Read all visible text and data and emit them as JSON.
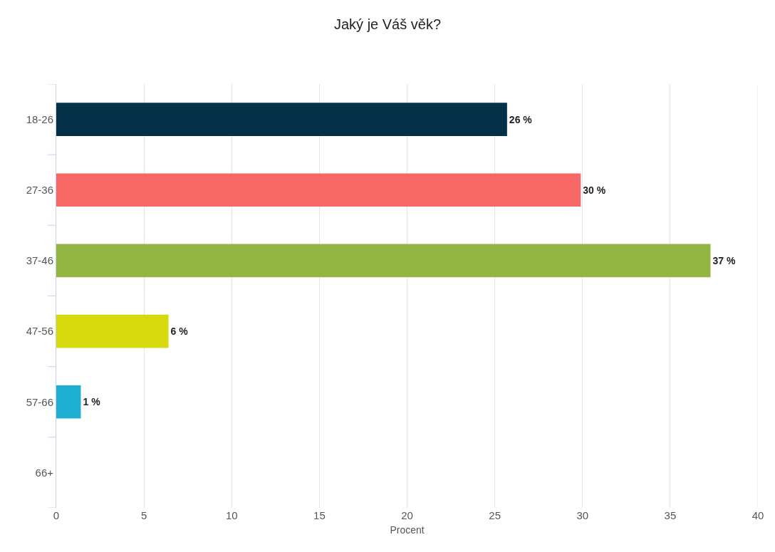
{
  "chart_data": {
    "type": "bar",
    "orientation": "horizontal",
    "title": "Jaký je Váš věk?",
    "xlabel": "Procent",
    "categories": [
      "18-26",
      "27-36",
      "37-46",
      "47-56",
      "57-66",
      "66+"
    ],
    "values": [
      25.7,
      29.9,
      37.3,
      6.4,
      1.4,
      0
    ],
    "colors": [
      "#043148",
      "#f66766",
      "#92b641",
      "#d7d80e",
      "#1eaed0",
      null
    ],
    "value_labels": [
      "26 %",
      "30 %",
      "37 %",
      "6 %",
      "1 %",
      null
    ],
    "xlim": [
      0,
      40
    ],
    "xticks": [
      0,
      5,
      10,
      15,
      20,
      25,
      30,
      35,
      40
    ],
    "grid": "x",
    "legend": false
  }
}
